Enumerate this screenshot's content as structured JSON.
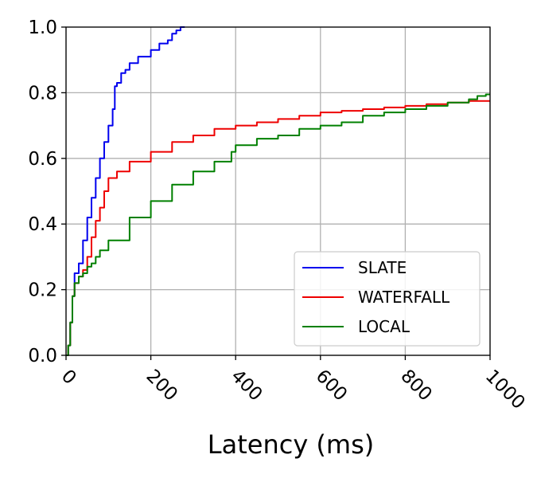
{
  "chart_data": {
    "type": "line",
    "xlabel": "Latency (ms)",
    "ylabel": "",
    "xlim": [
      0,
      1000
    ],
    "ylim": [
      0,
      1.0
    ],
    "x_ticks": [
      "0",
      "200",
      "400",
      "600",
      "800",
      "1000"
    ],
    "y_ticks": [
      "0.0",
      "0.2",
      "0.4",
      "0.6",
      "0.8",
      "1.0"
    ],
    "x_tick_values": [
      0,
      200,
      400,
      600,
      800,
      1000
    ],
    "y_tick_values": [
      0,
      0.2,
      0.4,
      0.6,
      0.8,
      1.0
    ],
    "grid": true,
    "legend_position": "lower-right",
    "series": [
      {
        "name": "SLATE",
        "color": "#0000ee",
        "points": [
          [
            0,
            0
          ],
          [
            5,
            0.03
          ],
          [
            10,
            0.1
          ],
          [
            15,
            0.18
          ],
          [
            20,
            0.25
          ],
          [
            30,
            0.28
          ],
          [
            40,
            0.35
          ],
          [
            50,
            0.42
          ],
          [
            60,
            0.48
          ],
          [
            70,
            0.54
          ],
          [
            80,
            0.6
          ],
          [
            90,
            0.65
          ],
          [
            100,
            0.7
          ],
          [
            110,
            0.75
          ],
          [
            115,
            0.82
          ],
          [
            120,
            0.83
          ],
          [
            130,
            0.86
          ],
          [
            140,
            0.87
          ],
          [
            150,
            0.89
          ],
          [
            170,
            0.91
          ],
          [
            200,
            0.93
          ],
          [
            220,
            0.95
          ],
          [
            240,
            0.96
          ],
          [
            250,
            0.98
          ],
          [
            260,
            0.99
          ],
          [
            270,
            1.0
          ],
          [
            280,
            1.0
          ]
        ]
      },
      {
        "name": "WATERFALL",
        "color": "#ee0000",
        "points": [
          [
            0,
            0
          ],
          [
            5,
            0.03
          ],
          [
            10,
            0.1
          ],
          [
            15,
            0.18
          ],
          [
            20,
            0.22
          ],
          [
            30,
            0.24
          ],
          [
            40,
            0.26
          ],
          [
            50,
            0.3
          ],
          [
            60,
            0.36
          ],
          [
            70,
            0.41
          ],
          [
            80,
            0.45
          ],
          [
            90,
            0.5
          ],
          [
            100,
            0.54
          ],
          [
            120,
            0.56
          ],
          [
            150,
            0.59
          ],
          [
            200,
            0.62
          ],
          [
            250,
            0.65
          ],
          [
            300,
            0.67
          ],
          [
            350,
            0.69
          ],
          [
            400,
            0.7
          ],
          [
            450,
            0.71
          ],
          [
            500,
            0.72
          ],
          [
            550,
            0.73
          ],
          [
            600,
            0.74
          ],
          [
            650,
            0.745
          ],
          [
            700,
            0.75
          ],
          [
            750,
            0.755
          ],
          [
            800,
            0.76
          ],
          [
            850,
            0.765
          ],
          [
            900,
            0.77
          ],
          [
            950,
            0.775
          ],
          [
            1000,
            0.775
          ]
        ]
      },
      {
        "name": "LOCAL",
        "color": "#008000",
        "points": [
          [
            0,
            0
          ],
          [
            5,
            0.03
          ],
          [
            10,
            0.1
          ],
          [
            15,
            0.18
          ],
          [
            20,
            0.22
          ],
          [
            30,
            0.24
          ],
          [
            40,
            0.25
          ],
          [
            50,
            0.27
          ],
          [
            60,
            0.28
          ],
          [
            70,
            0.3
          ],
          [
            80,
            0.32
          ],
          [
            100,
            0.35
          ],
          [
            150,
            0.42
          ],
          [
            200,
            0.47
          ],
          [
            250,
            0.52
          ],
          [
            300,
            0.56
          ],
          [
            350,
            0.59
          ],
          [
            390,
            0.62
          ],
          [
            400,
            0.64
          ],
          [
            450,
            0.66
          ],
          [
            500,
            0.67
          ],
          [
            550,
            0.69
          ],
          [
            600,
            0.7
          ],
          [
            650,
            0.71
          ],
          [
            700,
            0.73
          ],
          [
            750,
            0.74
          ],
          [
            800,
            0.75
          ],
          [
            850,
            0.76
          ],
          [
            900,
            0.77
          ],
          [
            950,
            0.78
          ],
          [
            970,
            0.79
          ],
          [
            990,
            0.795
          ],
          [
            1000,
            0.795
          ]
        ]
      }
    ]
  }
}
